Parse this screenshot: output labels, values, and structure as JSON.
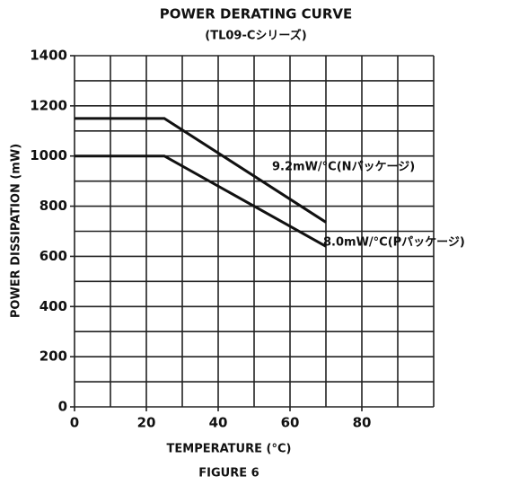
{
  "chart_data": {
    "type": "line",
    "title": "POWER DERATING CURVE",
    "subtitle": "(TL09-Cシリーズ)",
    "x_label": "TEMPERATURE (°C)",
    "y_label": "POWER DISSIPATION (mW)",
    "caption": "FIGURE 6",
    "xlim": [
      0,
      100
    ],
    "ylim": [
      0,
      1400
    ],
    "xticks": [
      0,
      20,
      40,
      60,
      80
    ],
    "yticks": [
      0,
      200,
      400,
      600,
      800,
      1000,
      1200,
      1400
    ],
    "xgrid": [
      0,
      10,
      20,
      30,
      40,
      50,
      60,
      70,
      80,
      90,
      100
    ],
    "ygrid": [
      0,
      100,
      200,
      300,
      400,
      500,
      600,
      700,
      800,
      900,
      1000,
      1100,
      1200,
      1300,
      1400
    ],
    "grid": true,
    "x": [
      0,
      25,
      70
    ],
    "series": [
      {
        "name": "9.2mW/°C(Nパッケージ)",
        "color": "#111111",
        "values": [
          1150,
          1150,
          736
        ]
      },
      {
        "name": "8.0mW/°C(Pパッケージ)",
        "color": "#111111",
        "values": [
          1000,
          1000,
          640
        ]
      }
    ]
  }
}
